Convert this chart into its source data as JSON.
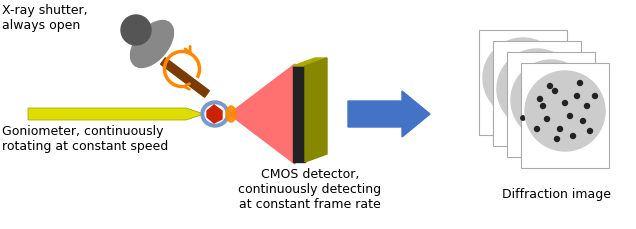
{
  "bg_color": "#ffffff",
  "fig_width": 6.36,
  "fig_height": 2.3,
  "dpi": 100,
  "labels": {
    "xray_shutter": "X-ray shutter,\nalways open",
    "goniometer": "Goniometer, continuously\nrotating at constant speed",
    "cmos": "CMOS detector,\ncontinuously detecting\nat constant frame rate",
    "diffraction": "Diffraction image"
  },
  "colors": {
    "gun_gray": "#888888",
    "gun_dark_gray": "#555555",
    "gun_barrel": "#7a3b00",
    "orange_arc": "#ff8800",
    "yellow_arrow_fill": "#dddd00",
    "yellow_arrow_edge": "#999900",
    "beam_pink": "#ff7070",
    "beam_orange_tip": "#ff8800",
    "crystal_blue": "#7799cc",
    "crystal_red": "#cc2200",
    "detector_face": "#222222",
    "detector_yellow": "#aaaa00",
    "detector_yellow_dark": "#888800",
    "big_arrow": "#4472c4",
    "diff_frame": "#ffffff",
    "diff_frame_edge": "#aaaaaa",
    "diff_circle": "#cccccc",
    "diff_dot": "#222222",
    "text_color": "#000000"
  }
}
